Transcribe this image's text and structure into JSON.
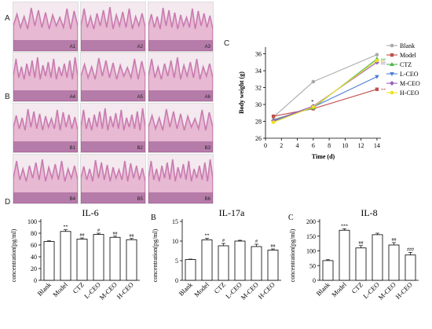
{
  "panels": {
    "A": "A",
    "B": "B",
    "C": "C",
    "D": "D"
  },
  "micrographs": {
    "rowA": [
      "A1",
      "A2",
      "A3",
      "A4",
      "A5",
      "A6"
    ],
    "rowB": [
      "B1",
      "B2",
      "B3",
      "B4",
      "B5",
      "B6"
    ],
    "colors": {
      "tissue": "#c97ab0",
      "tissue_dark": "#8e4a86",
      "background": "#f3e9ee",
      "stroma": "#e7b9d2"
    }
  },
  "chart_data": [
    {
      "id": "body-weight",
      "type": "line",
      "panel_label": "C",
      "xlabel": "Time (d)",
      "ylabel": "Body weight (g)",
      "x": [
        1,
        6,
        14
      ],
      "xticks": [
        0,
        2,
        4,
        6,
        8,
        10,
        12,
        14
      ],
      "yticks": [
        26,
        28,
        30,
        32,
        34,
        36
      ],
      "xlim": [
        0,
        14.5
      ],
      "ylim": [
        26,
        36.8
      ],
      "series": [
        {
          "name": "Blank",
          "color": "#a9a9a9",
          "marker": "circle",
          "values": [
            28.5,
            32.7,
            35.9
          ],
          "end_annotation": ""
        },
        {
          "name": "Model",
          "color": "#c0504d",
          "marker": "square",
          "values": [
            28.6,
            29.5,
            31.8
          ],
          "end_annotation": "**"
        },
        {
          "name": "CTZ",
          "color": "#4ab84a",
          "marker": "triangle",
          "values": [
            28.2,
            29.6,
            35.4
          ],
          "end_annotation": "##"
        },
        {
          "name": "L-CEO",
          "color": "#4a7fd4",
          "marker": "triangle-down",
          "values": [
            28.0,
            29.7,
            33.3
          ],
          "end_annotation": ""
        },
        {
          "name": "M-CEO",
          "color": "#9b5fc0",
          "marker": "diamond",
          "values": [
            28.1,
            29.8,
            35.0
          ],
          "end_annotation": "##"
        },
        {
          "name": "H-CEO",
          "color": "#f0e020",
          "marker": "circle",
          "values": [
            27.9,
            29.7,
            35.2
          ],
          "end_annotation": "#"
        }
      ],
      "legend_placement": "top-right",
      "mid_annotation": "*"
    },
    {
      "id": "il-6",
      "type": "bar",
      "title": "IL-6",
      "ylabel": "concentration(pg/ml)",
      "categories": [
        "Blank",
        "Model",
        "CTZ",
        "L-CEO",
        "M-CEO",
        "H-CEO"
      ],
      "values": [
        66,
        83,
        70,
        78,
        73,
        69
      ],
      "errors": [
        1,
        3,
        2,
        2,
        2,
        2
      ],
      "annotations": [
        "",
        "**",
        "##",
        "#",
        "##",
        "##"
      ],
      "yticks": [
        0,
        20,
        40,
        60,
        80,
        100
      ],
      "ylim": [
        0,
        100
      ]
    },
    {
      "id": "il-17a",
      "type": "bar",
      "panel_label": "B",
      "title": "IL-17a",
      "ylabel": "concentration(pg/ml)",
      "categories": [
        "Blank",
        "Model",
        "CTZ",
        "L-CEO",
        "M-CEO",
        "H-CEO"
      ],
      "values": [
        5.3,
        10.3,
        8.8,
        10.0,
        8.6,
        7.7
      ],
      "errors": [
        0.1,
        0.4,
        0.6,
        0.2,
        0.6,
        0.3
      ],
      "annotations": [
        "",
        "**",
        "#",
        "",
        "#",
        "##"
      ],
      "yticks": [
        0,
        5,
        10,
        15
      ],
      "ylim": [
        0,
        15
      ]
    },
    {
      "id": "il-8",
      "type": "bar",
      "panel_label": "C",
      "title": "IL-8",
      "ylabel": "concentration(pg/ml)",
      "categories": [
        "Blank",
        "Model",
        "CTZ",
        "L-CEO",
        "M-CEO",
        "H-CEO"
      ],
      "values": [
        67,
        170,
        110,
        155,
        120,
        86
      ],
      "errors": [
        3,
        5,
        8,
        5,
        8,
        9
      ],
      "annotations": [
        "",
        "***",
        "##",
        "",
        "##",
        "###"
      ],
      "yticks": [
        0,
        50,
        100,
        150,
        200
      ],
      "ylim": [
        0,
        200
      ]
    }
  ]
}
